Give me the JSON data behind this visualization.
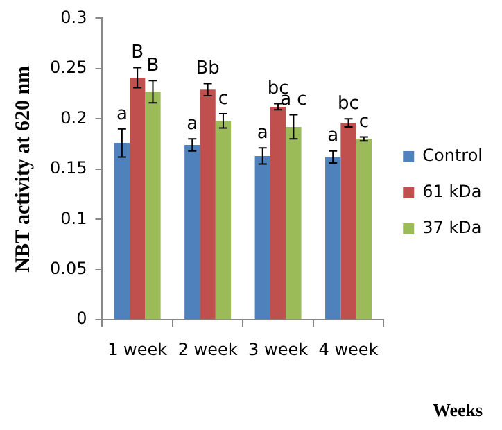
{
  "chart_data": {
    "type": "bar",
    "xlabel": "Weeks",
    "ylabel": "NBT activity at 620 nm",
    "categories": [
      "1 week",
      "2 week",
      "3 week",
      "4 week"
    ],
    "series": [
      {
        "name": "Control",
        "color": "#4f81bd",
        "values": [
          0.176,
          0.174,
          0.163,
          0.162
        ],
        "errors": [
          0.014,
          0.006,
          0.008,
          0.006
        ],
        "value_labels": [
          "a",
          "a",
          "a",
          "a"
        ]
      },
      {
        "name": "61 kDa",
        "color": "#c0504d",
        "values": [
          0.241,
          0.229,
          0.212,
          0.196
        ],
        "errors": [
          0.01,
          0.006,
          0.003,
          0.004
        ],
        "value_labels": [
          "B",
          "Bb",
          "bc",
          "bc"
        ]
      },
      {
        "name": "37 kDa",
        "color": "#9bbb59",
        "values": [
          0.227,
          0.198,
          0.192,
          0.18
        ],
        "errors": [
          0.011,
          0.007,
          0.012,
          0.002
        ],
        "value_labels": [
          "B",
          "c",
          "a c",
          "c"
        ]
      }
    ],
    "ylim": [
      0,
      0.3
    ],
    "yticks": [
      0,
      0.05,
      0.1,
      0.15,
      0.2,
      0.25,
      0.3
    ],
    "grid": false,
    "legend": "right"
  }
}
